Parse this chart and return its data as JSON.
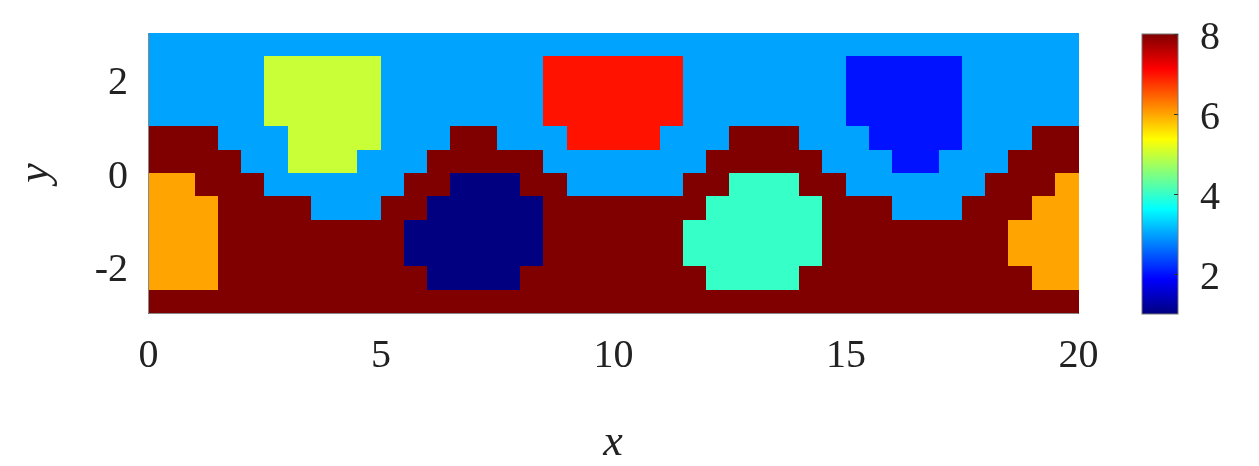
{
  "chart_data": {
    "type": "heatmap",
    "xlabel": "x",
    "ylabel": "y",
    "cells": [
      [
        3,
        3,
        3,
        3,
        3,
        3,
        3,
        3,
        3,
        3,
        3,
        3,
        3,
        3,
        3,
        3,
        3,
        3,
        3,
        3,
        3,
        3,
        3,
        3,
        3,
        3,
        3,
        3,
        3,
        3,
        3,
        3,
        3,
        3,
        3,
        3,
        3,
        3,
        3,
        3
      ],
      [
        3,
        3,
        3,
        3,
        3,
        5,
        5,
        5,
        5,
        5,
        3,
        3,
        3,
        3,
        3,
        3,
        3,
        7,
        7,
        7,
        7,
        7,
        7,
        3,
        3,
        3,
        3,
        3,
        3,
        3,
        2,
        2,
        2,
        2,
        2,
        3,
        3,
        3,
        3,
        3
      ],
      [
        3,
        3,
        3,
        3,
        3,
        5,
        5,
        5,
        5,
        5,
        3,
        3,
        3,
        3,
        3,
        3,
        3,
        7,
        7,
        7,
        7,
        7,
        7,
        3,
        3,
        3,
        3,
        3,
        3,
        3,
        2,
        2,
        2,
        2,
        2,
        3,
        3,
        3,
        3,
        3
      ],
      [
        3,
        3,
        3,
        3,
        3,
        5,
        5,
        5,
        5,
        5,
        3,
        3,
        3,
        3,
        3,
        3,
        3,
        7,
        7,
        7,
        7,
        7,
        7,
        3,
        3,
        3,
        3,
        3,
        3,
        3,
        2,
        2,
        2,
        2,
        2,
        3,
        3,
        3,
        3,
        3
      ],
      [
        8,
        8,
        8,
        3,
        3,
        3,
        5,
        5,
        5,
        5,
        3,
        3,
        3,
        8,
        8,
        3,
        3,
        3,
        7,
        7,
        7,
        7,
        3,
        3,
        3,
        8,
        8,
        8,
        3,
        3,
        3,
        2,
        2,
        2,
        2,
        3,
        3,
        3,
        8,
        8
      ],
      [
        8,
        8,
        8,
        8,
        3,
        3,
        5,
        5,
        5,
        3,
        3,
        3,
        8,
        8,
        8,
        8,
        8,
        3,
        3,
        3,
        3,
        3,
        3,
        3,
        8,
        8,
        8,
        8,
        8,
        3,
        3,
        3,
        2,
        2,
        3,
        3,
        3,
        8,
        8,
        8
      ],
      [
        6,
        6,
        8,
        8,
        8,
        3,
        3,
        3,
        3,
        3,
        3,
        8,
        8,
        1,
        1,
        1,
        8,
        8,
        3,
        3,
        3,
        3,
        3,
        8,
        8,
        4,
        4,
        4,
        8,
        8,
        3,
        3,
        3,
        3,
        3,
        3,
        8,
        8,
        8,
        6
      ],
      [
        6,
        6,
        6,
        8,
        8,
        8,
        8,
        3,
        3,
        3,
        8,
        8,
        1,
        1,
        1,
        1,
        1,
        8,
        8,
        8,
        8,
        8,
        8,
        8,
        4,
        4,
        4,
        4,
        4,
        8,
        8,
        8,
        3,
        3,
        3,
        8,
        8,
        8,
        6,
        6
      ],
      [
        6,
        6,
        6,
        8,
        8,
        8,
        8,
        8,
        8,
        8,
        8,
        1,
        1,
        1,
        1,
        1,
        1,
        8,
        8,
        8,
        8,
        8,
        8,
        4,
        4,
        4,
        4,
        4,
        4,
        8,
        8,
        8,
        8,
        8,
        8,
        8,
        8,
        6,
        6,
        6
      ],
      [
        6,
        6,
        6,
        8,
        8,
        8,
        8,
        8,
        8,
        8,
        8,
        1,
        1,
        1,
        1,
        1,
        1,
        8,
        8,
        8,
        8,
        8,
        8,
        4,
        4,
        4,
        4,
        4,
        4,
        8,
        8,
        8,
        8,
        8,
        8,
        8,
        8,
        6,
        6,
        6
      ],
      [
        6,
        6,
        6,
        8,
        8,
        8,
        8,
        8,
        8,
        8,
        8,
        8,
        1,
        1,
        1,
        1,
        8,
        8,
        8,
        8,
        8,
        8,
        8,
        8,
        4,
        4,
        4,
        4,
        8,
        8,
        8,
        8,
        8,
        8,
        8,
        8,
        8,
        8,
        6,
        6
      ],
      [
        8,
        8,
        8,
        8,
        8,
        8,
        8,
        8,
        8,
        8,
        8,
        8,
        8,
        8,
        8,
        8,
        8,
        8,
        8,
        8,
        8,
        8,
        8,
        8,
        8,
        8,
        8,
        8,
        8,
        8,
        8,
        8,
        8,
        8,
        8,
        8,
        8,
        8,
        8,
        8
      ]
    ],
    "xlim": [
      0,
      20
    ],
    "xticks": [
      0,
      5,
      10,
      15,
      20
    ],
    "ylim": [
      -3,
      3
    ],
    "yticks": [
      -2,
      0,
      2
    ],
    "clim": [
      1,
      8
    ],
    "cticks": [
      2,
      4,
      6,
      8
    ]
  }
}
